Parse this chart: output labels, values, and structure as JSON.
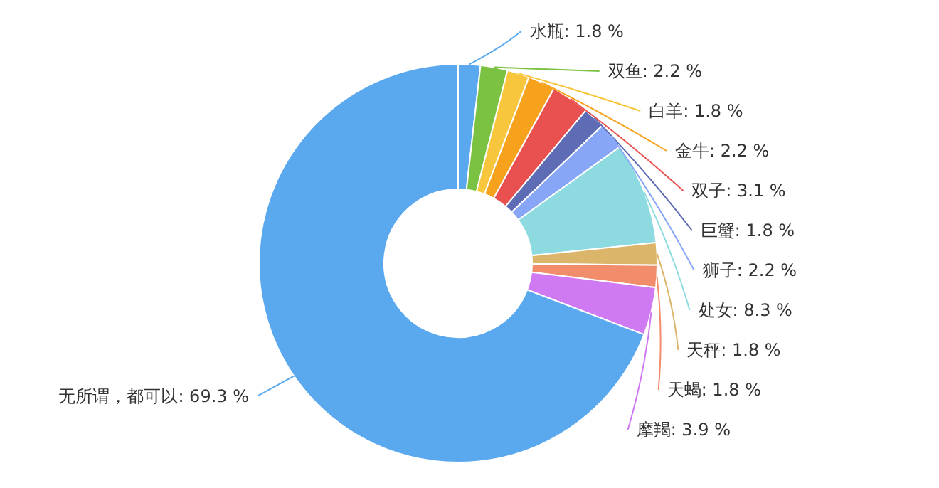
{
  "chart_data": {
    "type": "donut",
    "categories": [
      "水瓶",
      "双鱼",
      "白羊",
      "金牛",
      "双子",
      "巨蟹",
      "狮子",
      "处女",
      "天秤",
      "天蝎",
      "摩羯",
      "无所谓，都可以"
    ],
    "values": [
      1.8,
      2.2,
      1.8,
      2.2,
      3.1,
      1.8,
      2.2,
      8.3,
      1.8,
      1.8,
      3.9,
      69.3
    ],
    "value_labels": [
      "1.8 %",
      "2.2 %",
      "1.8 %",
      "2.2 %",
      "3.1 %",
      "1.8 %",
      "2.2 %",
      "8.3 %",
      "1.8 %",
      "1.8 %",
      "3.9 %",
      "69.3 %"
    ],
    "colors": [
      "#5aa9ee",
      "#7cc242",
      "#f8c63c",
      "#f6a21d",
      "#e8514f",
      "#5e6bb5",
      "#87a6f8",
      "#8ddbe0",
      "#dbb56a",
      "#f28d6c",
      "#cf79f2",
      "#5aa9ee"
    ],
    "legend": false
  }
}
